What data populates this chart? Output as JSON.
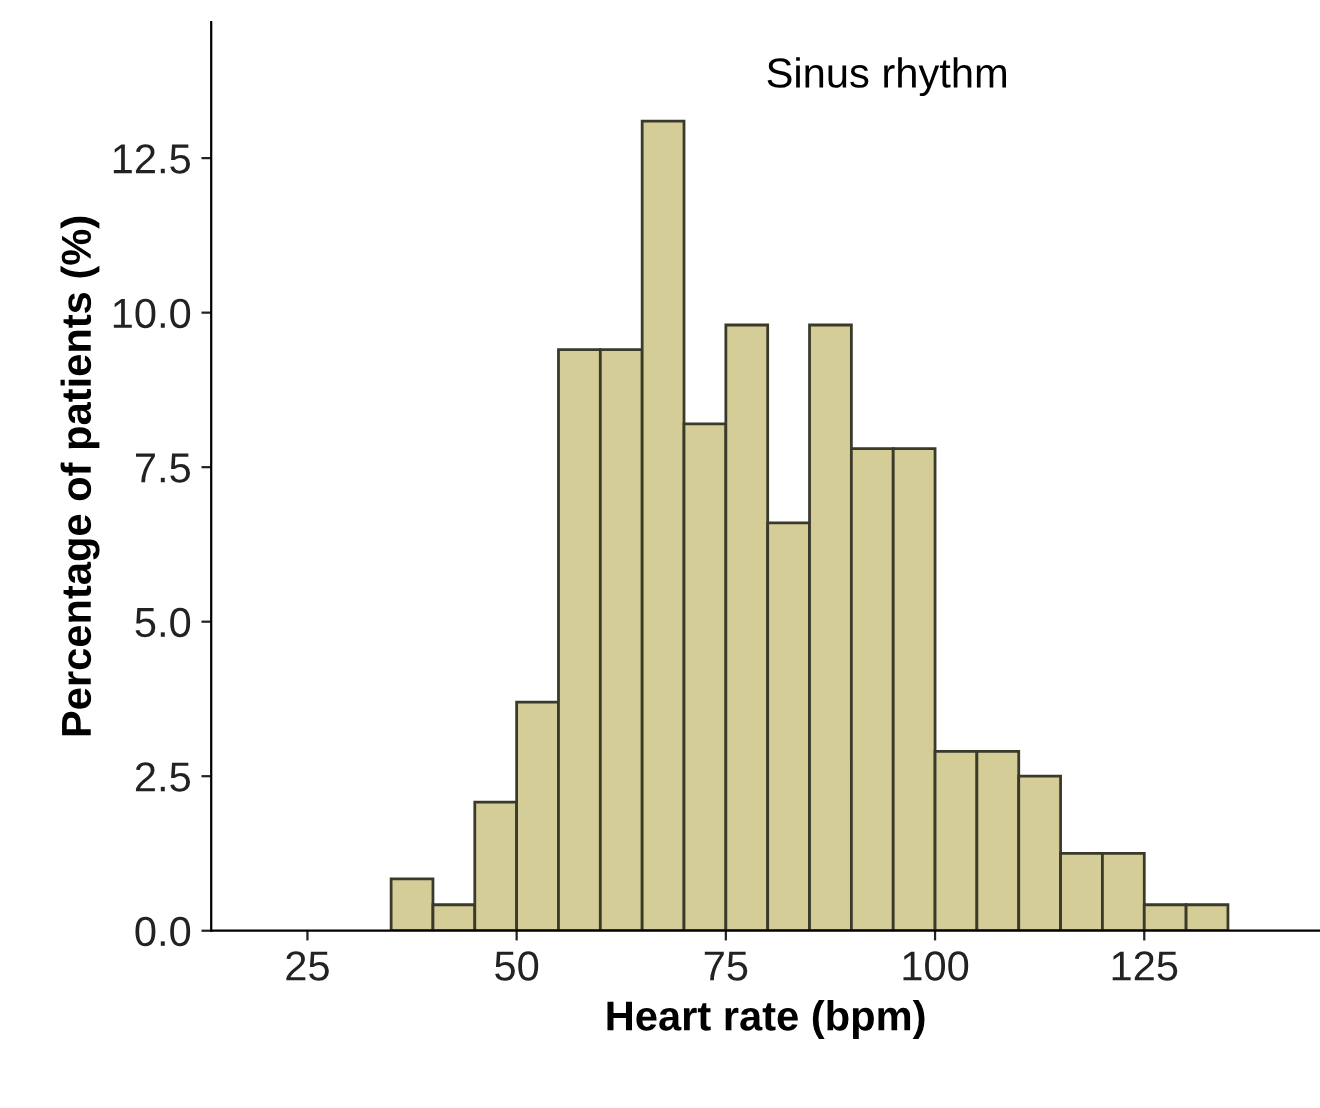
{
  "chart_data": {
    "type": "histogram",
    "xlabel": "Heart rate (bpm)",
    "ylabel": "Percentage of patients (%)",
    "annotations": [
      "Sinus rhythm"
    ],
    "bins": [
      35,
      40,
      45,
      50,
      55,
      60,
      65,
      70,
      75,
      80,
      85,
      90,
      95,
      100,
      105,
      110,
      115,
      120,
      125,
      130,
      135
    ],
    "values": [
      0.84,
      0.42,
      2.08,
      3.7,
      9.4,
      9.4,
      13.1,
      8.2,
      9.8,
      6.6,
      9.8,
      7.8,
      7.8,
      2.9,
      2.9,
      2.5,
      1.25,
      1.25,
      0.42,
      0.42
    ],
    "color": "#d4cd98",
    "xlim": [
      13.5,
      146
    ],
    "xticks": [
      25,
      50,
      75,
      100,
      125
    ],
    "ylim": [
      0,
      14.7
    ],
    "yticks": [
      {
        "value": 0,
        "label": "0.0"
      },
      {
        "value": 2.5,
        "label": "2.5"
      },
      {
        "value": 5,
        "label": "5.0"
      },
      {
        "value": 7.5,
        "label": "7.5"
      },
      {
        "value": 10,
        "label": "10.0"
      },
      {
        "value": 12.5,
        "label": "12.5"
      }
    ],
    "grid": false,
    "legend": false
  }
}
